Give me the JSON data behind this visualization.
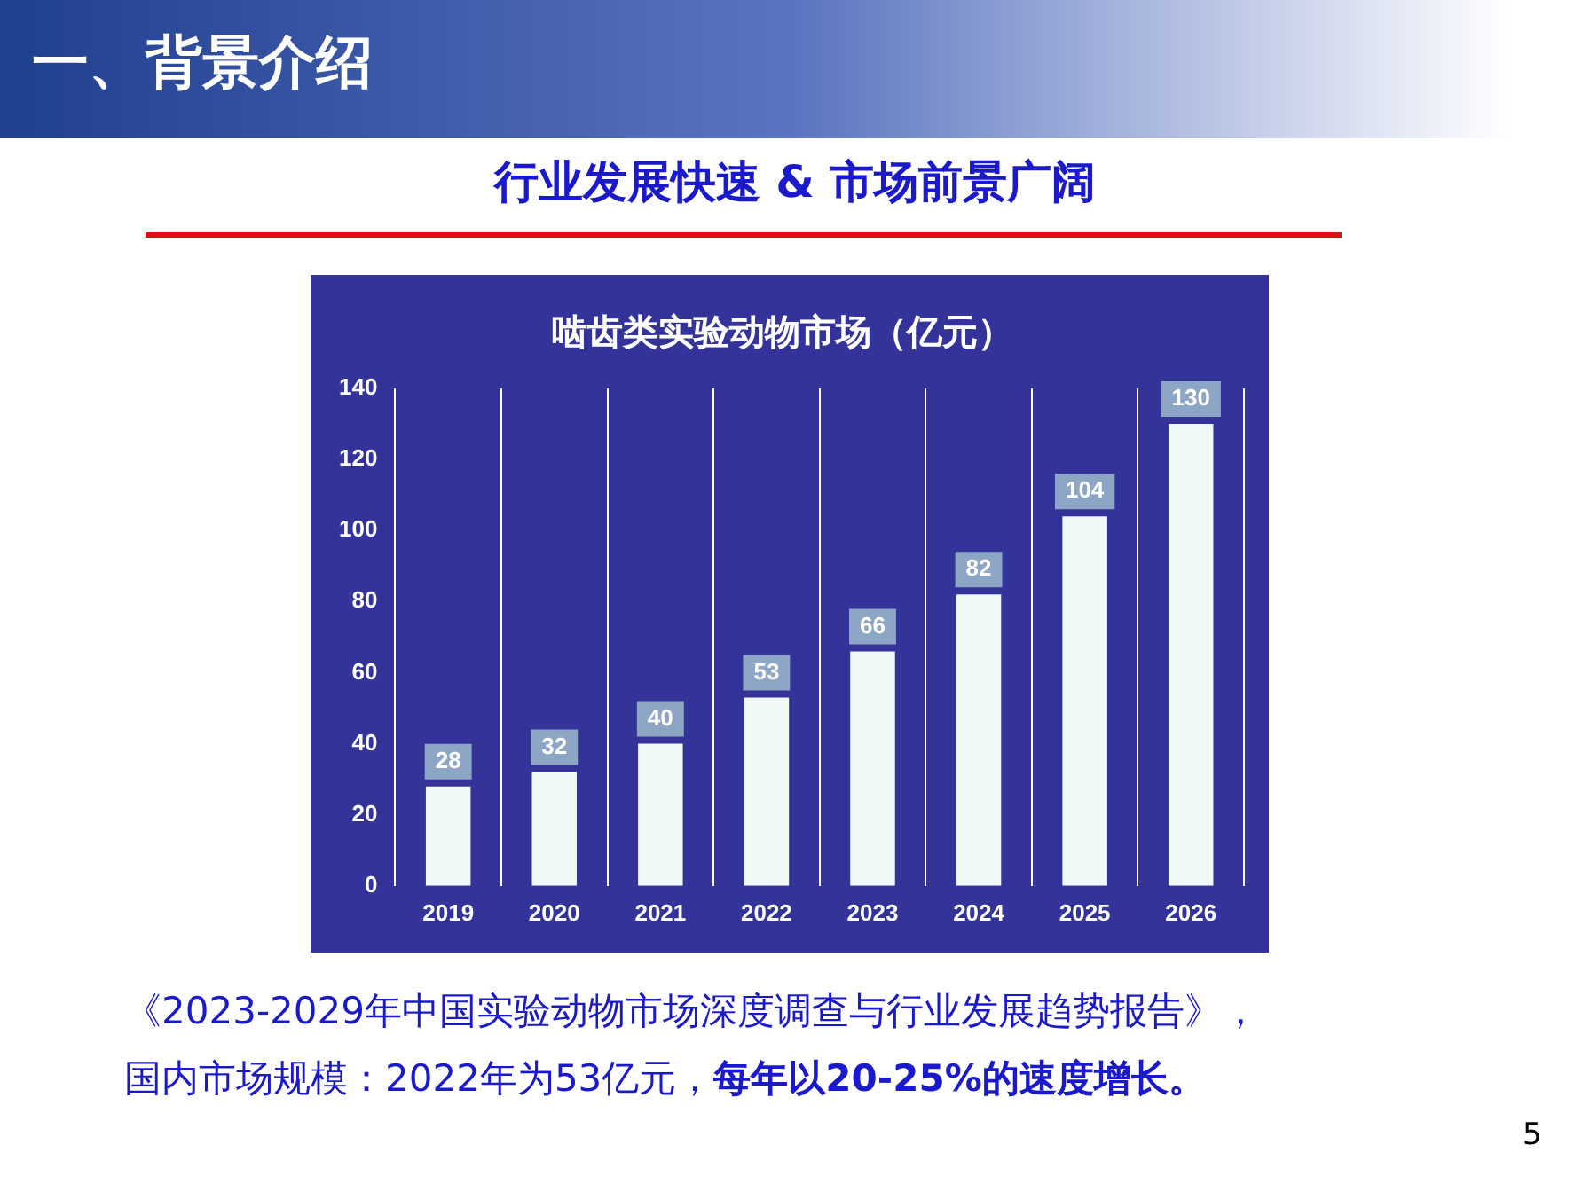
{
  "chart_data": {
    "type": "bar",
    "title": "啮齿类实验动物市场（亿元）",
    "subtitle": "行业发展快速 & 市场前景广阔",
    "annotations": [
      "一、背景介绍",
      "《2023-2029年中国实验动物市场深度调查与行业发展趋势报告》，",
      "国内市场规模：2022年为53亿元，",
      "每年以20-25%的速度增长。",
      "5"
    ],
    "categories": [
      "2019",
      "2020",
      "2021",
      "2022",
      "2023",
      "2024",
      "2025",
      "2026"
    ],
    "values": [
      28,
      32,
      40,
      53,
      66,
      82,
      104,
      130
    ],
    "color": "#f0f8f8",
    "ylim": [
      0,
      140
    ],
    "yticks": [
      0,
      20,
      40,
      60,
      80,
      100,
      120,
      140
    ],
    "grid": "x",
    "data_labels": true
  }
}
